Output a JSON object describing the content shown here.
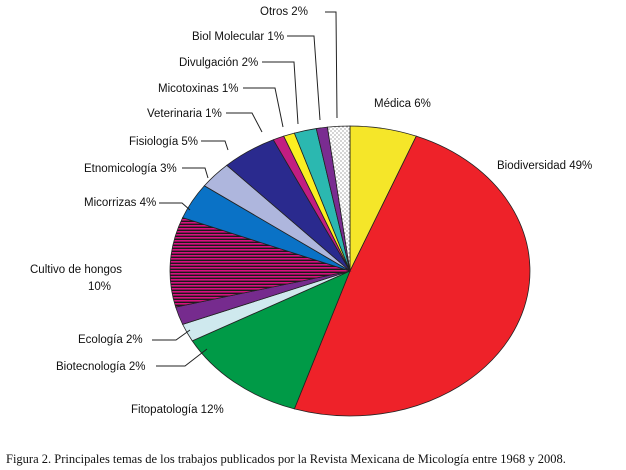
{
  "caption": "Figura 2. Principales temas de los trabajos publicados por la Revista Mexicana de Micología entre 1968 y 2008.",
  "chart_data": {
    "type": "pie",
    "start": "top, clockwise",
    "slices": [
      {
        "name": "Médica",
        "label": "Médica 6%",
        "value": 6,
        "color": "#f5e629",
        "pattern": "none"
      },
      {
        "name": "Biodiversidad",
        "label": "Biodiversidad 49%",
        "value": 49,
        "color": "#ee2229",
        "pattern": "none"
      },
      {
        "name": "Fitopatología",
        "label": "Fitopatología 12%",
        "value": 12,
        "color": "#009a47",
        "pattern": "none"
      },
      {
        "name": "Biotecnología",
        "label": "Biotecnología 2%",
        "value": 2,
        "color": "#cfe9ee",
        "pattern": "none"
      },
      {
        "name": "Ecología",
        "label": "Ecología 2%",
        "value": 2,
        "color": "#762b8e",
        "pattern": "none"
      },
      {
        "name": "Cultivo de hongos",
        "label_lines": [
          "Cultivo de hongos",
          "10%"
        ],
        "value": 10,
        "color": "#d6117f",
        "pattern": "stripes"
      },
      {
        "name": "Micorrizas",
        "label": "Micorrizas 4%",
        "value": 4,
        "color": "#0a72c6",
        "pattern": "none"
      },
      {
        "name": "Etnomicología",
        "label": "Etnomicología 3%",
        "value": 3,
        "color": "#aeb6dd",
        "pattern": "none"
      },
      {
        "name": "Fisiología",
        "label": "Fisiología 5%",
        "value": 5,
        "color": "#2a2a8e",
        "pattern": "none"
      },
      {
        "name": "Veterinaria",
        "label": "Veterinaria 1%",
        "value": 1,
        "color": "#c21d82",
        "pattern": "none"
      },
      {
        "name": "Micotoxinas",
        "label": "Micotoxinas 1%",
        "value": 1,
        "color": "#fbef22",
        "pattern": "none"
      },
      {
        "name": "Divulgación",
        "label": "Divulgación 2%",
        "value": 2,
        "color": "#2bb8b0",
        "pattern": "none"
      },
      {
        "name": "Biol Molecular",
        "label": "Biol Molecular 1%",
        "value": 1,
        "color": "#7a2c91",
        "pattern": "none"
      },
      {
        "name": "Otros",
        "label": "Otros 2%",
        "value": 2,
        "color": "#ffffff",
        "pattern": "dots"
      }
    ]
  }
}
